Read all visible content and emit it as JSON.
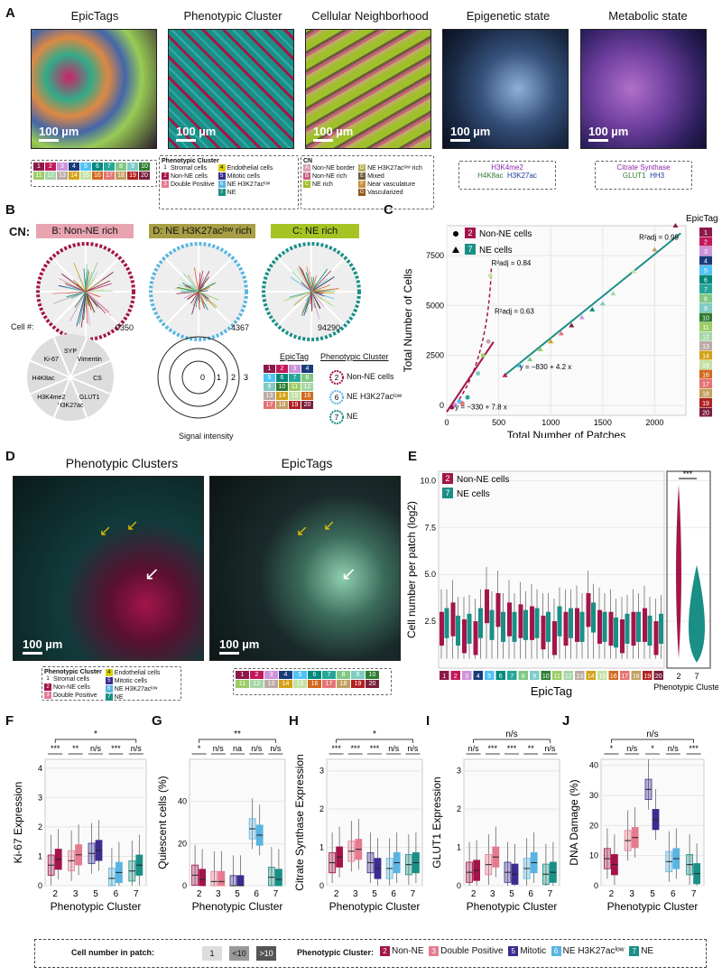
{
  "panels": {
    "a": "A",
    "b": "B",
    "c": "C",
    "d": "D",
    "e": "E",
    "f": "F",
    "g": "G",
    "h": "H",
    "i": "I",
    "j": "J"
  },
  "a_titles": [
    "EpicTags",
    "Phenotypic Cluster",
    "Cellular Neighborhood",
    "Epigenetic state",
    "Metabolic state"
  ],
  "scale": "100 µm",
  "epictag_nums": [
    "1",
    "2",
    "3",
    "4",
    "5",
    "6",
    "7",
    "8",
    "9",
    "10",
    "11",
    "12",
    "13",
    "14",
    "15",
    "16",
    "17",
    "18",
    "19",
    "20"
  ],
  "epictag_colors": [
    "#8b1a4a",
    "#c2185b",
    "#ce93d8",
    "#1a3b7a",
    "#4fc3f7",
    "#00897b",
    "#26a69a",
    "#81c784",
    "#80cbc4",
    "#2e7d32",
    "#9ccc65",
    "#a5d6a7",
    "#bcaaa4",
    "#d4a017",
    "#c5e1a5",
    "#d2691e",
    "#e57373",
    "#c0a060",
    "#b22222",
    "#7b1f3a"
  ],
  "pc_legend": {
    "title": "Phenotypic Cluster",
    "items": [
      {
        "n": "1",
        "label": "Stromal cells",
        "color": "#ffffff"
      },
      {
        "n": "2",
        "label": "Non-NE cells",
        "color": "#a3154a"
      },
      {
        "n": "3",
        "label": "Double Positive",
        "color": "#e57b8f"
      },
      {
        "n": "4",
        "label": "Endothelial cells",
        "color": "#d8d000"
      },
      {
        "n": "5",
        "label": "Mitotic cells",
        "color": "#3a2d8f"
      },
      {
        "n": "6",
        "label": "NE H3K27acˡᵒʷ",
        "color": "#5ab4e0"
      },
      {
        "n": "7",
        "label": "NE",
        "color": "#1a8f86"
      }
    ]
  },
  "cn_legend": {
    "title": "CN",
    "items": [
      {
        "n": "A",
        "label": "Non-NE border",
        "color": "#d8a0b0"
      },
      {
        "n": "B",
        "label": "Non-NE rich",
        "color": "#c95f7f"
      },
      {
        "n": "C",
        "label": "NE rich",
        "color": "#9fc02a"
      },
      {
        "n": "D",
        "label": "NE H3K27acˡᵒʷ rich",
        "color": "#b8b05a"
      },
      {
        "n": "E",
        "label": "Mixed",
        "color": "#6b5d3a"
      },
      {
        "n": "F",
        "label": "Near vasculature",
        "color": "#c89040"
      },
      {
        "n": "G",
        "label": "Vascularized",
        "color": "#8f5a1a"
      }
    ]
  },
  "epi_legend": [
    "H3K4me2",
    "H4K8ac",
    "H3K27ac"
  ],
  "meta_legend": [
    "Citrate Synthase",
    "GLUT1",
    "HH3"
  ],
  "b": {
    "cn_label": "CN:",
    "headers": [
      "B: Non-NE rich",
      "D: NE H3K27acˡᵒʷ rich",
      "C: NE rich"
    ],
    "counts": [
      "9350",
      "4367",
      "94290"
    ],
    "cell_num": "Cell #:",
    "markers": [
      "SYP",
      "Vimentin",
      "CS",
      "GLUT1",
      "H3K27ac",
      "H3K4me2",
      "H4K8ac",
      "Ki-67"
    ],
    "signal": "Signal intensity",
    "rings": [
      "0",
      "1",
      "2",
      "3"
    ],
    "epictag_title": "EpicTag",
    "pc_title": "Phenotypic Cluster",
    "pc_items": [
      {
        "n": "2",
        "label": "Non-NE cells"
      },
      {
        "n": "6",
        "label": "NE H3K27acˡᵒʷ"
      },
      {
        "n": "7",
        "label": "NE"
      }
    ]
  },
  "chart_data": [
    {
      "type": "scatter",
      "panel": "C",
      "xlabel": "Total Number of Patches",
      "ylabel": "Total Number of Cells",
      "xlim": [
        0,
        2300
      ],
      "ylim": [
        -500,
        9000
      ],
      "xticks": [
        0,
        500,
        1000,
        1500,
        2000
      ],
      "yticks": [
        0,
        2500,
        5000,
        7500
      ],
      "legend": [
        {
          "n": "2",
          "label": "Non-NE cells",
          "marker": "circle"
        },
        {
          "n": "7",
          "label": "NE cells",
          "marker": "triangle"
        }
      ],
      "side_legend_title": "EpicTag",
      "annotations": [
        "R²adj = 0.84",
        "R²adj = 0.63",
        "R²adj = 0.99",
        "y = −330 + 7.8 x",
        "y = −830 + 4.2 x"
      ],
      "series": [
        {
          "name": "Non-NE cells",
          "points": [
            [
              50,
              -100
            ],
            [
              80,
              20
            ],
            [
              120,
              200
            ],
            [
              200,
              400
            ],
            [
              300,
              1600
            ],
            [
              350,
              2500
            ],
            [
              400,
              3200
            ],
            [
              420,
              6500
            ],
            [
              150,
              100
            ]
          ]
        },
        {
          "name": "NE cells",
          "points": [
            [
              560,
              1500
            ],
            [
              700,
              2000
            ],
            [
              800,
              2300
            ],
            [
              900,
              2800
            ],
            [
              1000,
              3200
            ],
            [
              1100,
              3600
            ],
            [
              1200,
              4000
            ],
            [
              1300,
              4400
            ],
            [
              1400,
              4800
            ],
            [
              1500,
              5100
            ],
            [
              1600,
              5600
            ],
            [
              1800,
              6700
            ],
            [
              2000,
              7800
            ],
            [
              2200,
              9000
            ]
          ]
        }
      ]
    },
    {
      "type": "boxplot",
      "panel": "E",
      "xlabel": "EpicTag",
      "ylabel": "Cell number per patch (log2)",
      "ylim": [
        0,
        10.5
      ],
      "yticks": [
        2.5,
        5.0,
        7.5,
        10.0
      ],
      "categories": [
        "1",
        "2",
        "3",
        "4",
        "5",
        "6",
        "7",
        "8",
        "9",
        "10",
        "11",
        "12",
        "13",
        "14",
        "15",
        "16",
        "17",
        "18",
        "19",
        "20"
      ],
      "legend": [
        {
          "n": "2",
          "label": "Non-NE cells"
        },
        {
          "n": "7",
          "label": "NE cells"
        }
      ],
      "violin_label": "Phenotypic Cluster",
      "violin_cats": [
        "2",
        "7"
      ],
      "sig": "***",
      "medians_non_ne": [
        2.0,
        2.5,
        1.6,
        1.5,
        3.2,
        3.0,
        2.5,
        2.4,
        2.3,
        1.8,
        1.5,
        2.0,
        2.2,
        3.0,
        2.1,
        2.0,
        1.6,
        2.0,
        2.2,
        1.5
      ],
      "medians_ne": [
        2.2,
        1.8,
        1.9,
        2.2,
        2.1,
        2.0,
        2.0,
        2.1,
        2.2,
        2.0,
        2.3,
        2.2,
        2.0,
        2.5,
        2.0,
        1.7,
        1.9,
        2.0,
        1.8,
        1.9
      ]
    },
    {
      "type": "boxplot",
      "panel": "F",
      "ylabel": "Ki-67 Expression",
      "xlabel": "Phenotypic Cluster",
      "categories": [
        "2",
        "3",
        "5",
        "6",
        "7"
      ],
      "ylim": [
        0,
        4.3
      ],
      "yticks": [
        0,
        1,
        2,
        3,
        4
      ],
      "sig_pairs": [
        "***",
        "**",
        "n/s",
        "***",
        "n/s"
      ],
      "sig_top": "*",
      "medians_low": [
        0.7,
        0.85,
        1.1,
        0.25,
        0.5
      ],
      "medians_high": [
        0.9,
        1.05,
        1.2,
        0.45,
        0.7
      ]
    },
    {
      "type": "boxplot",
      "panel": "G",
      "ylabel": "Quiescent cells (%)",
      "xlabel": "Phenotypic Cluster",
      "categories": [
        "2",
        "3",
        "5",
        "6",
        "7"
      ],
      "ylim": [
        0,
        60
      ],
      "yticks": [
        0,
        20,
        40
      ],
      "sig_pairs": [
        "*",
        "n/s",
        "na",
        "n/s",
        "n/s"
      ],
      "sig_top": "**",
      "medians_low": [
        5,
        2,
        0,
        27,
        4
      ],
      "medians_high": [
        3,
        2,
        0,
        24,
        3
      ]
    },
    {
      "type": "boxplot",
      "panel": "H",
      "ylabel": "Citrate Synthase Expression",
      "xlabel": "Phenotypic Cluster",
      "categories": [
        "2",
        "3",
        "5",
        "6",
        "7"
      ],
      "ylim": [
        0,
        3.3
      ],
      "yticks": [
        0,
        1,
        2,
        3
      ],
      "sig_pairs": [
        "***",
        "***",
        "***",
        "n/s",
        "n/s"
      ],
      "sig_top": "*",
      "medians_low": [
        0.6,
        0.9,
        0.6,
        0.45,
        0.55
      ],
      "medians_high": [
        0.75,
        0.95,
        0.45,
        0.6,
        0.6
      ]
    },
    {
      "type": "boxplot",
      "panel": "I",
      "ylabel": "GLUT1 Expression",
      "xlabel": "Phenotypic Cluster",
      "categories": [
        "2",
        "3",
        "5",
        "6",
        "7"
      ],
      "ylim": [
        0,
        3.3
      ],
      "yticks": [
        0,
        1,
        2,
        3
      ],
      "sig_pairs": [
        "n/s",
        "***",
        "***",
        "**",
        "n/s"
      ],
      "sig_top": "n/s",
      "medians_low": [
        0.35,
        0.55,
        0.35,
        0.45,
        0.3
      ],
      "medians_high": [
        0.4,
        0.75,
        0.3,
        0.6,
        0.35
      ]
    },
    {
      "type": "boxplot",
      "panel": "J",
      "ylabel": "DNA Damage (%)",
      "xlabel": "Phenotypic Cluster",
      "categories": [
        "2",
        "3",
        "5",
        "6",
        "7"
      ],
      "ylim": [
        0,
        42
      ],
      "yticks": [
        0,
        10,
        20,
        30,
        40
      ],
      "sig_pairs": [
        "*",
        "n/s",
        "*",
        "n/s",
        "***"
      ],
      "sig_top": "n/s",
      "medians_low": [
        9,
        15,
        32,
        8,
        7
      ],
      "medians_high": [
        7,
        16,
        22,
        9,
        4
      ]
    }
  ],
  "d_titles": [
    "Phenotypic Clusters",
    "EpicTags"
  ],
  "legend_bottom": {
    "cell_label": "Cell number in patch:",
    "levels": [
      "1",
      "<10",
      ">10"
    ],
    "pc_label": "Phenotypic Cluster:",
    "items": [
      {
        "n": "2",
        "label": "Non-NE",
        "color": "#a3154a"
      },
      {
        "n": "3",
        "label": "Double Positive",
        "color": "#e57b8f"
      },
      {
        "n": "5",
        "label": "Mitotic",
        "color": "#3a2d8f"
      },
      {
        "n": "6",
        "label": "NE H3K27acˡᵒʷ",
        "color": "#5ab4e0"
      },
      {
        "n": "7",
        "label": "NE",
        "color": "#1a8f86"
      }
    ]
  },
  "colors": {
    "non_ne": "#a3154a",
    "ne": "#1a8f86",
    "double_pos": "#e57b8f",
    "mitotic": "#3a2d8f",
    "ne_low": "#5ab4e0"
  }
}
